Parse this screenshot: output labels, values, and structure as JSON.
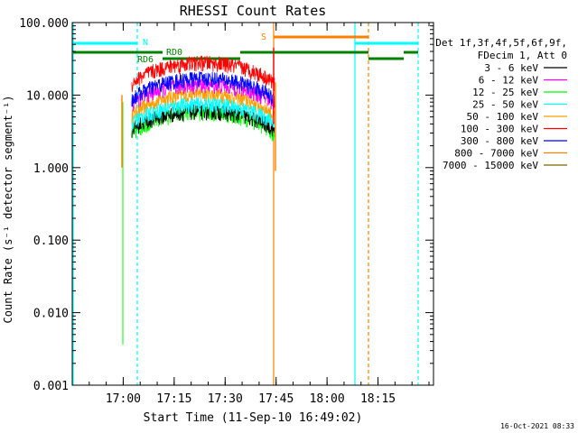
{
  "chart_data": {
    "type": "line",
    "title": "RHESSI Count Rates",
    "xlabel": "Start Time (11-Sep-10 16:49:02)",
    "ylabel": "Count Rate (s⁻¹ detector segment⁻¹)",
    "yscale": "log",
    "ylim": [
      0.001,
      100
    ],
    "xlim_minutes_after_start": [
      -4.03,
      102.3
    ],
    "x_tick_labels": [
      "17:00",
      "17:15",
      "17:30",
      "17:45",
      "18:00",
      "18:15"
    ],
    "x_tick_minutes": [
      10.97,
      25.97,
      40.97,
      55.97,
      70.97,
      85.97
    ],
    "y_tick_labels": [
      "0.001",
      "0.010",
      "0.100",
      "1.000",
      "10.000",
      "100.000"
    ],
    "y_tick_values": [
      0.001,
      0.01,
      0.1,
      1,
      10,
      100
    ],
    "footer_date": "16-Oct-2021 08:33",
    "legend_position": "right",
    "legend_header": [
      "Det 1f,3f,4f,5f,6f,9f,",
      "FDecim 1, Att 0"
    ],
    "series": [
      {
        "name": "3 - 6 keV",
        "color": "#000000",
        "base": 3.3,
        "peak": 6.0
      },
      {
        "name": "6 - 12 keV",
        "color": "#ff00ff",
        "base": 7.5,
        "peak": 14.0
      },
      {
        "name": "12 - 25 keV",
        "color": "#00ff00",
        "base": 2.8,
        "peak": 5.8
      },
      {
        "name": "25 - 50 keV",
        "color": "#00ffff",
        "base": 4.0,
        "peak": 7.5
      },
      {
        "name": "50 - 100 keV",
        "color": "#ffa000",
        "base": 5.0,
        "peak": 10.5
      },
      {
        "name": "100 - 300 keV",
        "color": "#ff0000",
        "base": 14.0,
        "peak": 28.0
      },
      {
        "name": "300 - 800 keV",
        "color": "#0000ff",
        "base": 8.5,
        "peak": 17.0
      },
      {
        "name": "800 - 7000 keV",
        "color": "#ff8000",
        "base": 0,
        "peak": 0
      },
      {
        "name": "7000 - 15000 keV",
        "color": "#806000",
        "base": 0,
        "peak": 0
      }
    ],
    "data_window_minutes": [
      13.5,
      55.5
    ],
    "flags": [
      {
        "label": "N",
        "color": "#00ffff"
      },
      {
        "label": "RD6",
        "color": "#008000"
      },
      {
        "label": "RD0",
        "color": "#008000"
      },
      {
        "label": "S",
        "color": "#ff8000"
      }
    ]
  }
}
